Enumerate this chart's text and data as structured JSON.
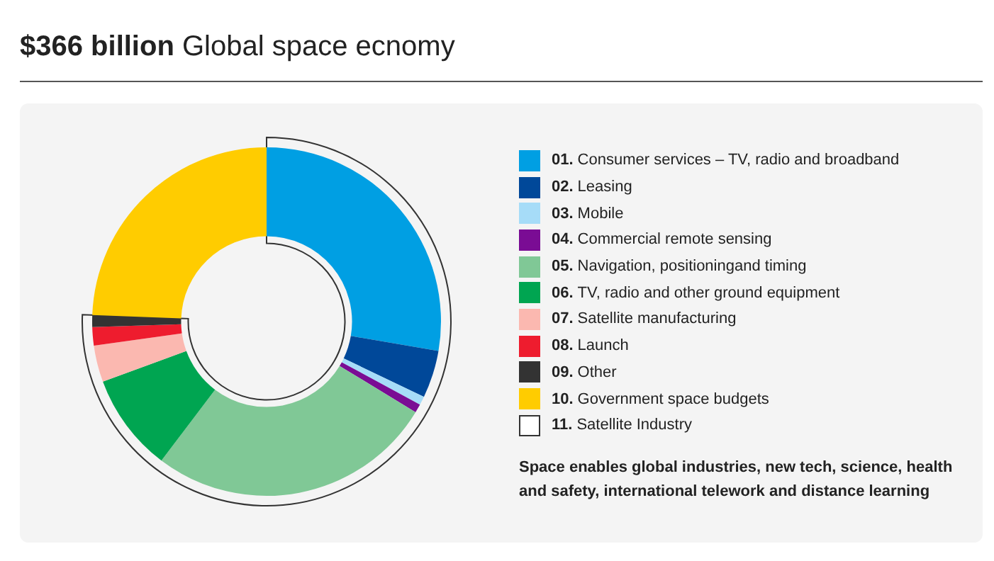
{
  "chart_data": {
    "type": "donut",
    "title": "$366 billion",
    "subtitle": "Global space ecnomy",
    "categories": [
      "01. Consumer services – TV, radio and broadband",
      "02. Leasing",
      "03. Mobile",
      "04. Commercial remote sensing",
      "05. Navigation, positioningand timing",
      "06. TV, radio and other ground equipment",
      "07. Satellite manufacturing",
      "08. Launch",
      "09. Other",
      "10. Government space budgets",
      "11. Satellite Industry"
    ],
    "colors": [
      "#009fe3",
      "#004899",
      "#a6dcf8",
      "#7a0c94",
      "#80c896",
      "#00a551",
      "#fbb8b0",
      "#ee1c2e",
      "#333333",
      "#ffcc00",
      "#ffffff"
    ],
    "values": [
      27.7,
      4.4,
      0.8,
      0.8,
      26.6,
      9.1,
      3.4,
      1.7,
      1.1,
      24.4,
      null
    ],
    "legend": "right",
    "annotations": [
      "Space enables global industries, new tech, science, health and safety, international telework and distance learning"
    ]
  }
}
